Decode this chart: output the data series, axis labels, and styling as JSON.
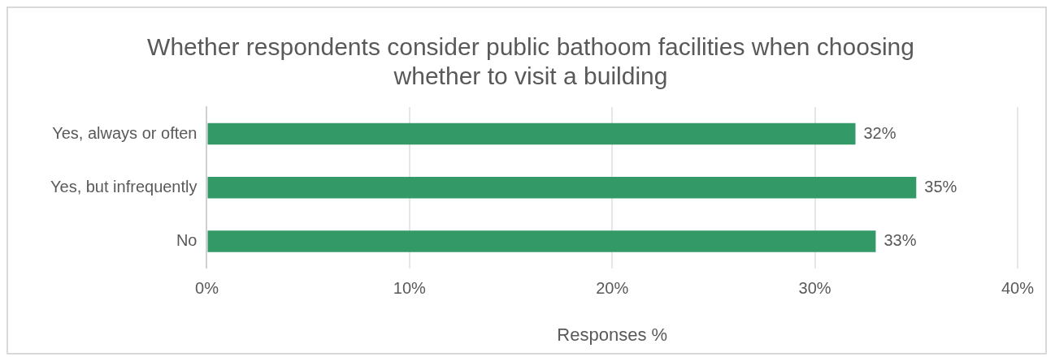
{
  "chart_data": {
    "type": "bar",
    "orientation": "horizontal",
    "title": "Whether respondents consider public bathoom facilities when choosing whether to visit a building",
    "xlabel": "Responses %",
    "categories": [
      "Yes, always or often",
      "Yes, but infrequently",
      "No"
    ],
    "values": [
      32,
      35,
      33
    ],
    "color": "#339966",
    "xlim": [
      0,
      40
    ],
    "xticks": [
      {
        "value": 0,
        "label": "0%"
      },
      {
        "value": 10,
        "label": "10%"
      },
      {
        "value": 20,
        "label": "20%"
      },
      {
        "value": 30,
        "label": "30%"
      },
      {
        "value": 40,
        "label": "40%"
      }
    ],
    "value_labels": [
      "32%",
      "35%",
      "33%"
    ],
    "grid": "x",
    "legend": false
  }
}
